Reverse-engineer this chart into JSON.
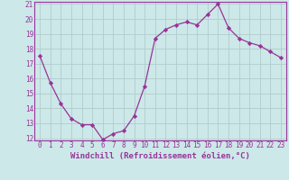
{
  "x": [
    0,
    1,
    2,
    3,
    4,
    5,
    6,
    7,
    8,
    9,
    10,
    11,
    12,
    13,
    14,
    15,
    16,
    17,
    18,
    19,
    20,
    21,
    22,
    23
  ],
  "y": [
    17.5,
    15.7,
    14.3,
    13.3,
    12.9,
    12.9,
    11.9,
    12.3,
    12.5,
    13.5,
    15.5,
    18.7,
    19.3,
    19.6,
    19.8,
    19.6,
    20.3,
    21.0,
    19.4,
    18.7,
    18.4,
    18.2,
    17.8,
    17.4
  ],
  "line_color": "#993399",
  "marker": "D",
  "markersize": 2.2,
  "linewidth": 0.9,
  "bg_color": "#cce8e8",
  "grid_color": "#b0cccc",
  "xlabel": "Windchill (Refroidissement éolien,°C)",
  "xlabel_color": "#993399",
  "tick_color": "#993399",
  "ylim": [
    12,
    21
  ],
  "yticks": [
    12,
    13,
    14,
    15,
    16,
    17,
    18,
    19,
    20,
    21
  ],
  "xticks": [
    0,
    1,
    2,
    3,
    4,
    5,
    6,
    7,
    8,
    9,
    10,
    11,
    12,
    13,
    14,
    15,
    16,
    17,
    18,
    19,
    20,
    21,
    22,
    23
  ],
  "xlabel_fontsize": 6.5,
  "tick_fontsize": 5.5
}
